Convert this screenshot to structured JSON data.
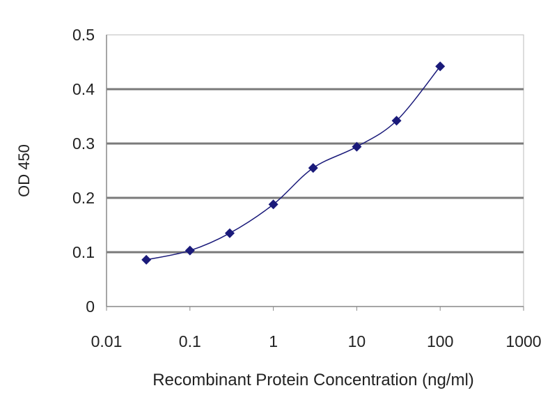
{
  "chart_data": {
    "type": "line",
    "title": "",
    "xlabel": "Recombinant Protein Concentration (ng/ml)",
    "ylabel": "OD 450",
    "x_scale": "log",
    "xlim": [
      0.01,
      1000
    ],
    "ylim": [
      0,
      0.5
    ],
    "x_ticks": [
      "0.01",
      "0.1",
      "1",
      "10",
      "100",
      "1000"
    ],
    "x_tick_values": [
      0.01,
      0.1,
      1,
      10,
      100,
      1000
    ],
    "y_ticks": [
      "0",
      "0.1",
      "0.2",
      "0.3",
      "0.4",
      "0.5"
    ],
    "y_tick_values": [
      0,
      0.1,
      0.2,
      0.3,
      0.4,
      0.5
    ],
    "grid": "horizontal",
    "legend": "none",
    "series": [
      {
        "x": [
          0.03,
          0.1,
          0.3,
          1,
          3,
          10,
          30,
          100
        ],
        "y": [
          0.086,
          0.103,
          0.135,
          0.188,
          0.255,
          0.294,
          0.342,
          0.442
        ],
        "color": "#1a1a7a",
        "marker": "diamond"
      }
    ]
  }
}
